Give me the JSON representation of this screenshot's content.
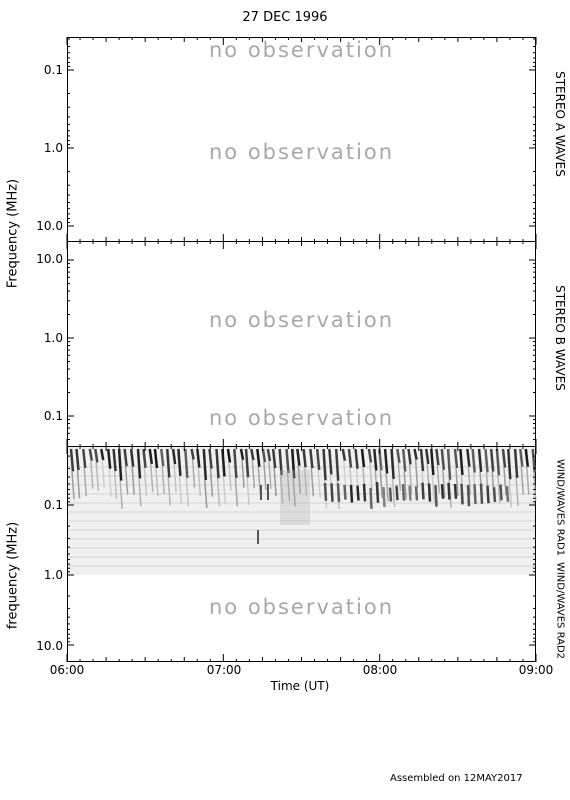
{
  "title": "27 DEC 1996",
  "footer": "Assembled on 12MAY2017",
  "no_obs": "no observation",
  "chart_data": [
    {
      "type": "heatmap",
      "instrument": "STEREO A WAVES",
      "ylabel": "Frequency (MHz)",
      "yscale": "log",
      "y_inverted": true,
      "yticks": [
        "0.1",
        "1.0",
        "10.0"
      ],
      "ylim": [
        0.04,
        15
      ],
      "data": "no observation"
    },
    {
      "type": "heatmap",
      "instrument": "STEREO B WAVES",
      "ylabel": "Frequency (MHz)",
      "yscale": "log",
      "yticks": [
        "10.0",
        "1.0",
        "0.1"
      ],
      "ylim": [
        15,
        0.04
      ],
      "data": "no observation"
    },
    {
      "type": "heatmap",
      "instrument_upper": "WIND/WAVES RAD1",
      "instrument_lower": "WIND/WAVES RAD2",
      "ylabel": "frequency (MHz)",
      "xlabel": "Time (UT)",
      "yscale": "log",
      "y_inverted": true,
      "yticks": [
        "0.1",
        "1.0",
        "10.0"
      ],
      "xticks": [
        "06:00",
        "07:00",
        "08:00",
        "09:00"
      ],
      "xlim": [
        "06:00",
        "09:00"
      ],
      "rad2_data": "no observation"
    }
  ]
}
